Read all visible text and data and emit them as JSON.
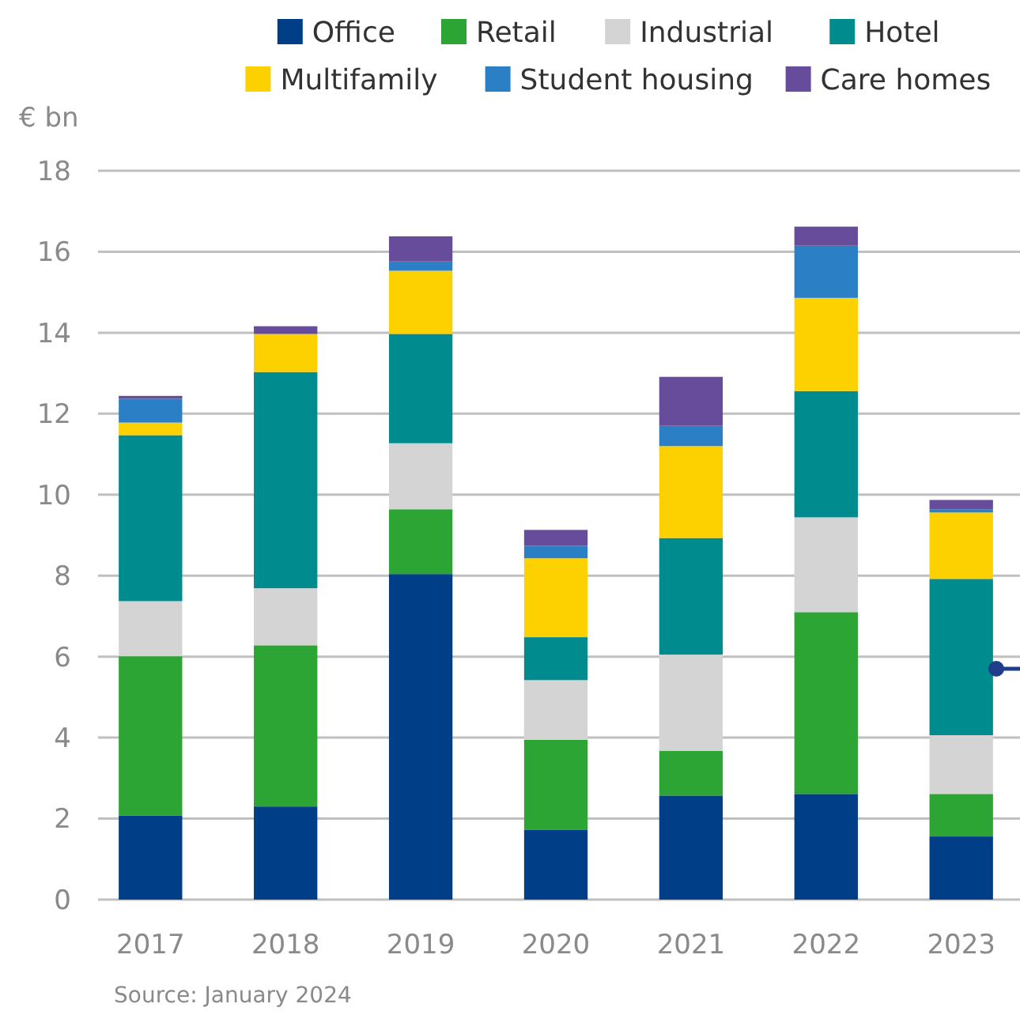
{
  "chart_data": {
    "type": "bar",
    "stacked": true,
    "ylabel": "€ bn",
    "categories": [
      "2017",
      "2018",
      "2019",
      "2020",
      "2021",
      "2022",
      "2023"
    ],
    "series": [
      {
        "name": "Office",
        "color": "#003f87",
        "values": [
          2.08,
          2.3,
          8.04,
          1.73,
          2.57,
          2.61,
          1.56
        ]
      },
      {
        "name": "Retail",
        "color": "#2ca535",
        "values": [
          3.93,
          3.98,
          1.6,
          2.22,
          1.1,
          4.49,
          1.05
        ]
      },
      {
        "name": "Industrial",
        "color": "#d4d4d4",
        "values": [
          1.36,
          1.41,
          1.63,
          1.47,
          2.38,
          2.34,
          1.45
        ]
      },
      {
        "name": "Hotel",
        "color": "#008c8f",
        "values": [
          4.1,
          5.34,
          2.7,
          1.06,
          2.88,
          3.12,
          3.86
        ]
      },
      {
        "name": "Multifamily",
        "color": "#fdd000",
        "values": [
          0.31,
          0.94,
          1.56,
          1.95,
          2.27,
          2.3,
          1.64
        ]
      },
      {
        "name": "Student housing",
        "color": "#2b80c5",
        "values": [
          0.59,
          0,
          0.23,
          0.31,
          0.5,
          1.29,
          0.08
        ]
      },
      {
        "name": "Care homes",
        "color": "#674c9b",
        "values": [
          0.07,
          0.19,
          0.62,
          0.39,
          1.21,
          0.47,
          0.23
        ]
      }
    ],
    "ylim": [
      0,
      18
    ],
    "yticks": [
      0,
      2,
      4,
      6,
      8,
      10,
      12,
      14,
      16,
      18
    ],
    "grid": "y",
    "legend": "top",
    "annotations": [
      "Source: January 2024"
    ]
  }
}
